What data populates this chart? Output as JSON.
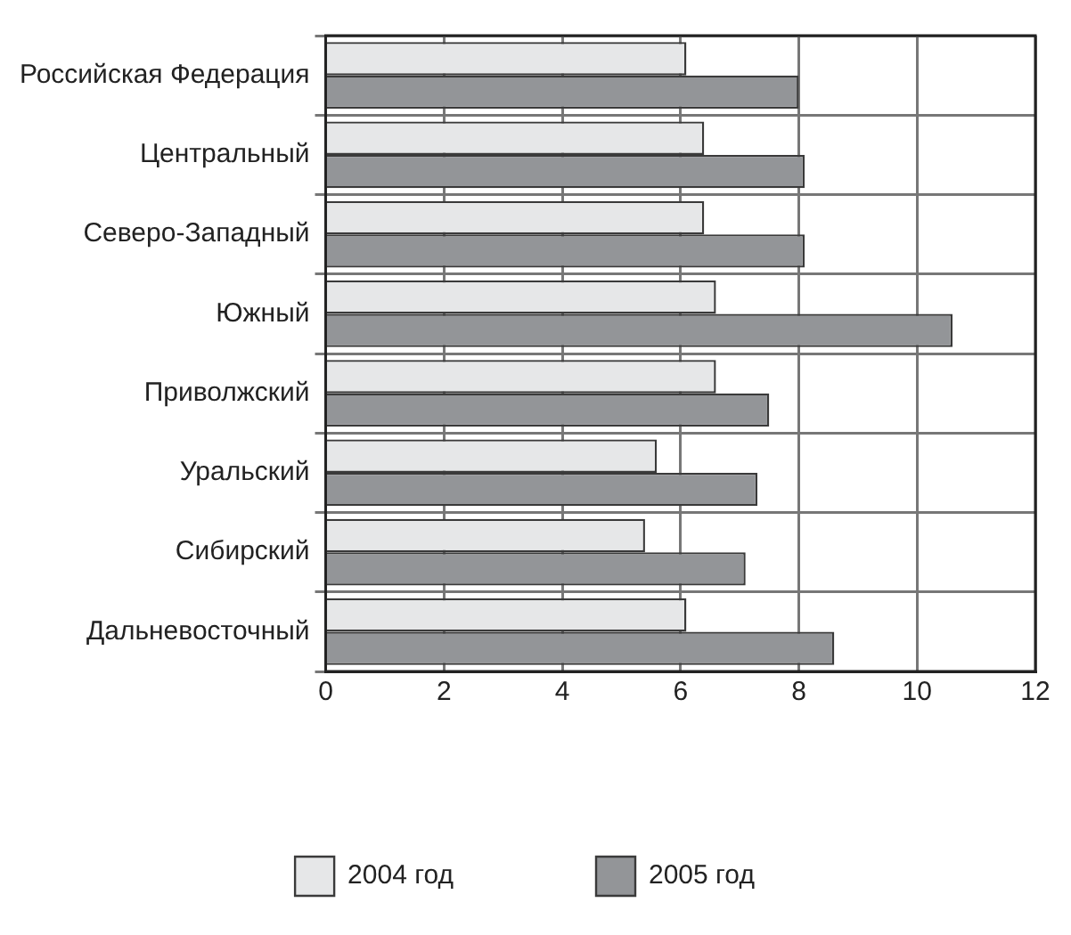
{
  "chart_data": {
    "type": "bar",
    "orientation": "horizontal",
    "categories": [
      "Российская Федерация",
      "Центральный",
      "Северо-Западный",
      "Южный",
      "Приволжский",
      "Уральский",
      "Сибирский",
      "Дальневосточный"
    ],
    "series": [
      {
        "name": "2004 год",
        "color": "#e6e7e8",
        "values": [
          6.1,
          6.4,
          6.4,
          6.6,
          6.6,
          5.6,
          5.4,
          6.1
        ]
      },
      {
        "name": "2005 год",
        "color": "#939598",
        "values": [
          8.0,
          8.1,
          8.1,
          10.6,
          7.5,
          7.3,
          7.1,
          8.6
        ]
      }
    ],
    "xlim": [
      0,
      12
    ],
    "xticks": [
      0,
      2,
      4,
      6,
      8,
      10,
      12
    ],
    "grid": true,
    "legend": "bottom"
  }
}
